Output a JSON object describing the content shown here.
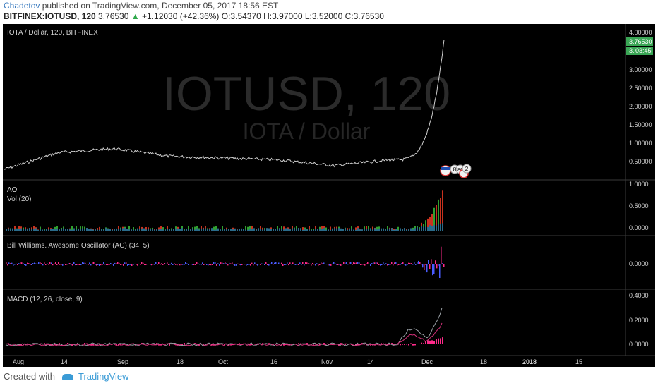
{
  "header": {
    "author": "Chadetov",
    "published_text": "published on TradingView.com, December 05, 2017 18:56 EST",
    "symbol": "BITFINEX:IOTUSD, 120",
    "last": "3.76530",
    "change_arrow": "▲",
    "change": "+1.12030 (+42.36%)",
    "ohlc": "O:3.54370 H:3.97000 L:3.52000 C:3.76530"
  },
  "main_pane": {
    "legend": "IOTA / Dollar, 120, BITFINEX",
    "watermark_symbol": "IOTUSD, 120",
    "watermark_name": "IOTA / Dollar",
    "price_ticks": [
      "4.00000",
      "3.76530",
      "3.",
      "03:45",
      "3.00000",
      "2.50000",
      "2.00000",
      "1.50000",
      "1.00000",
      "0.50000"
    ],
    "event_label": "8",
    "event_label2": "80",
    "event_label3": "2"
  },
  "ao_pane": {
    "legend1": "AO",
    "legend2": "Vol (20)",
    "ticks": [
      "1.0000",
      "0.5000",
      "0.0000"
    ]
  },
  "ac_pane": {
    "legend": "Bill Williams. Awesome Oscillator (AC) (34, 5)",
    "ticks": [
      "0.0000"
    ]
  },
  "macd_pane": {
    "legend": "MACD (12, 26, close, 9)",
    "ticks": [
      "0.4000",
      "0.2000",
      "0.0000"
    ]
  },
  "time_axis": {
    "labels": [
      "Aug",
      "14",
      "Sep",
      "18",
      "Oct",
      "16",
      "Nov",
      "14",
      "Dec",
      "18",
      "2018",
      "15"
    ]
  },
  "footer": {
    "created_with": "Created with",
    "brand": "TradingView"
  },
  "colors": {
    "up": "#2ea84a",
    "price_tag": "#3aa655",
    "ao_green": "#2fa02f",
    "ao_red": "#c8321e",
    "ac_blue": "#4a5cff",
    "ac_pink": "#ff2a8a",
    "macd_line": "#9aa0a6",
    "signal_line": "#d6307a"
  },
  "chart_data": {
    "type": "line",
    "title": "IOTA / Dollar, 120, BITFINEX",
    "x": [
      "Aug",
      "14",
      "Sep",
      "18",
      "Oct",
      "16",
      "Nov",
      "14",
      "Dec"
    ],
    "series": [
      {
        "values": [
          0.3,
          0.75,
          0.85,
          0.65,
          0.6,
          0.55,
          0.4,
          0.55,
          3.77
        ]
      }
    ],
    "ylim": [
      0.3,
      4.0
    ]
  }
}
